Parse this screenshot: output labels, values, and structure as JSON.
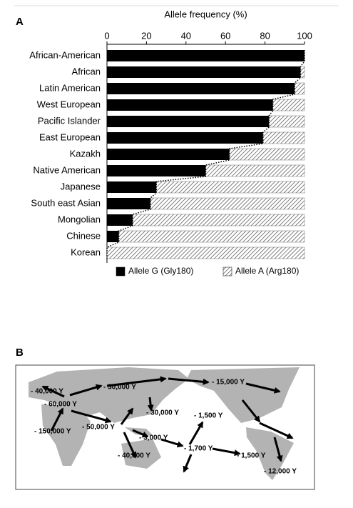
{
  "panel_labels": {
    "a": "A",
    "b": "B"
  },
  "chart_data": {
    "type": "bar",
    "orientation": "horizontal",
    "stacked": true,
    "x_label": "Allele frequency (%)",
    "categories": [
      "African-American",
      "African",
      "Latin American",
      "West European",
      "Pacific Islander",
      "East European",
      "Kazakh",
      "Native American",
      "Japanese",
      "South east Asian",
      "Mongolian",
      "Chinese",
      "Korean"
    ],
    "series": [
      {
        "name": "Allele G (Gly180)",
        "color": "#000000",
        "pattern": "solid",
        "values": [
          100,
          98,
          95,
          84,
          82,
          79,
          62,
          50,
          25,
          22,
          13,
          6,
          0
        ]
      },
      {
        "name": "Allele A (Arg180)",
        "color": "#555555",
        "pattern": "hatch",
        "values": [
          0,
          2,
          5,
          16,
          18,
          21,
          38,
          50,
          75,
          78,
          87,
          94,
          100
        ]
      }
    ],
    "xlim": [
      0,
      100
    ],
    "xticks": [
      0,
      20,
      40,
      60,
      80,
      100
    ],
    "connector": "dotted",
    "legend": "bottom"
  },
  "map": {
    "annotations": [
      "- 40,000 Y",
      "- 60,000 Y",
      "- 150,000 Y",
      "- 30,000 Y",
      "- 50,000 Y",
      "- 30,000 Y",
      "- 15,000 Y",
      "- 1,500 Y",
      "- 3,000 Y",
      "- 40,000 Y",
      "- 1,700 Y",
      "- 1,500 Y",
      "- 12,000 Y"
    ]
  }
}
